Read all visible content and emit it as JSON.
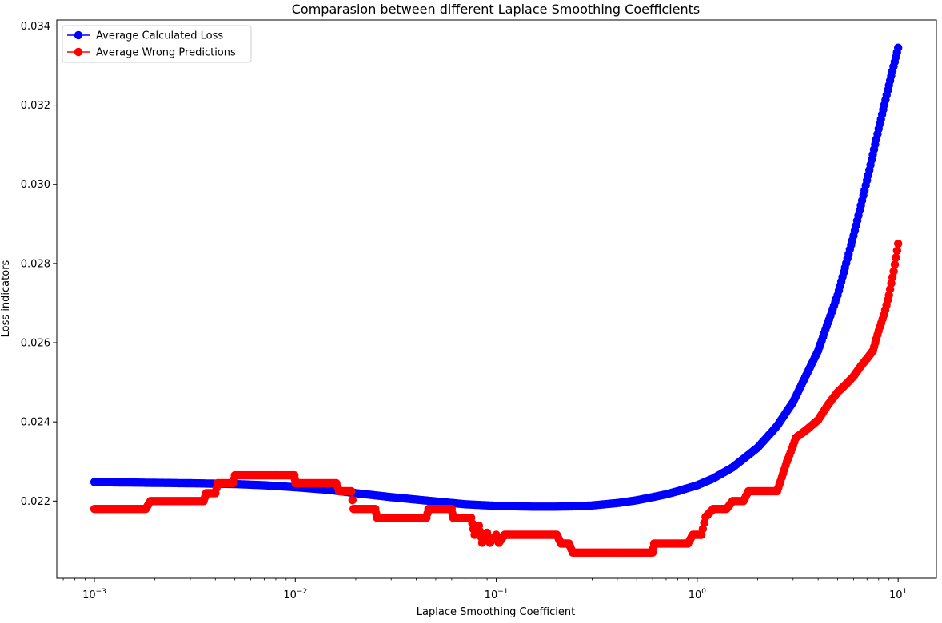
{
  "chart_data": {
    "type": "scatter",
    "title": "Comparasion between different Laplace Smoothing Coefficients",
    "xlabel": "Laplace Smoothing Coefficient",
    "ylabel": "Loss indicators",
    "xscale": "log",
    "xlim": [
      0.00065,
      15.5
    ],
    "ylim": [
      0.02005,
      0.03415
    ],
    "x_ticks": [
      0.001,
      0.01,
      0.1,
      1,
      10
    ],
    "x_tick_labels": [
      {
        "base": "10",
        "exp": "−3"
      },
      {
        "base": "10",
        "exp": "−2"
      },
      {
        "base": "10",
        "exp": "−1"
      },
      {
        "base": "10",
        "exp": "0"
      },
      {
        "base": "10",
        "exp": "1"
      }
    ],
    "y_ticks": [
      0.022,
      0.024,
      0.026,
      0.028,
      0.03,
      0.032,
      0.034
    ],
    "y_tick_labels": [
      "0.022",
      "0.024",
      "0.026",
      "0.028",
      "0.030",
      "0.032",
      "0.034"
    ],
    "grid": false,
    "legend_position": "top-left",
    "series": [
      {
        "name": "Average Calculated Loss",
        "color": "#0000ff",
        "marker": "circle",
        "x": [
          0.001,
          0.002,
          0.003,
          0.005,
          0.007,
          0.01,
          0.015,
          0.02,
          0.03,
          0.05,
          0.07,
          0.1,
          0.15,
          0.2,
          0.25,
          0.3,
          0.4,
          0.5,
          0.6,
          0.7,
          0.8,
          1.0,
          1.2,
          1.5,
          2.0,
          2.5,
          3.0,
          4.0,
          5.0,
          6.0,
          7.0,
          8.0,
          9.0,
          10.0
        ],
        "y": [
          0.02248,
          0.02246,
          0.02245,
          0.02243,
          0.0224,
          0.02235,
          0.02228,
          0.0222,
          0.0221,
          0.02199,
          0.02192,
          0.02188,
          0.02186,
          0.02186,
          0.02187,
          0.02189,
          0.02195,
          0.02202,
          0.0221,
          0.02217,
          0.02225,
          0.0224,
          0.02257,
          0.02285,
          0.02335,
          0.0239,
          0.0245,
          0.0258,
          0.0272,
          0.0287,
          0.0301,
          0.0314,
          0.0325,
          0.03345
        ]
      },
      {
        "name": "Average Wrong Predictions",
        "color": "#ff0000",
        "marker": "circle",
        "x": [
          0.001,
          0.0018,
          0.0019,
          0.0035,
          0.0036,
          0.004,
          0.0041,
          0.0049,
          0.005,
          0.0099,
          0.01,
          0.016,
          0.0165,
          0.019,
          0.0195,
          0.025,
          0.0255,
          0.045,
          0.046,
          0.06,
          0.061,
          0.075,
          0.078,
          0.082,
          0.085,
          0.09,
          0.093,
          0.1,
          0.103,
          0.11,
          0.2,
          0.21,
          0.23,
          0.24,
          0.6,
          0.61,
          0.9,
          0.95,
          1.05,
          1.1,
          1.2,
          1.4,
          1.5,
          1.7,
          1.8,
          2.5,
          2.6,
          2.8,
          3.0,
          3.1,
          3.5,
          4.0,
          4.5,
          5.0,
          5.5,
          6.0,
          6.5,
          7.0,
          7.5,
          8.0,
          8.5,
          9.0,
          9.5,
          10.0
        ],
        "y": [
          0.0218,
          0.0218,
          0.022,
          0.022,
          0.0222,
          0.0222,
          0.02245,
          0.02245,
          0.02265,
          0.02265,
          0.02245,
          0.02245,
          0.02225,
          0.02225,
          0.0218,
          0.0218,
          0.02158,
          0.02158,
          0.0218,
          0.0218,
          0.02158,
          0.02158,
          0.02115,
          0.02138,
          0.02095,
          0.0212,
          0.02095,
          0.02115,
          0.02095,
          0.02115,
          0.02115,
          0.02093,
          0.02093,
          0.0207,
          0.0207,
          0.02093,
          0.02093,
          0.02115,
          0.02115,
          0.0216,
          0.0218,
          0.0218,
          0.022,
          0.022,
          0.02225,
          0.02225,
          0.0225,
          0.023,
          0.0234,
          0.0236,
          0.0238,
          0.02405,
          0.02445,
          0.02475,
          0.02495,
          0.02515,
          0.0254,
          0.0256,
          0.0258,
          0.0263,
          0.0267,
          0.0272,
          0.0278,
          0.0285
        ]
      }
    ]
  }
}
